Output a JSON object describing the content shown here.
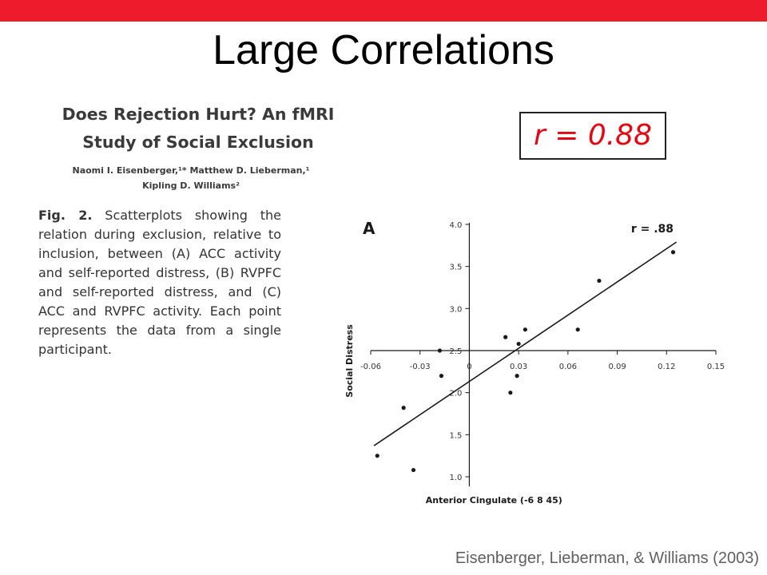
{
  "slide": {
    "title": "Large Correlations",
    "accent_color": "#ee1b2d",
    "r_label": "r = 0.88",
    "r_color": "#e30613",
    "citation": "Eisenberger, Lieberman, & Williams (2003)"
  },
  "paper": {
    "title_line1": "Does Rejection Hurt? An fMRI",
    "title_line2": "Study of Social Exclusion",
    "authors_line1": "Naomi I. Eisenberger,¹* Matthew D. Lieberman,¹",
    "authors_line2": "Kipling D. Williams²",
    "caption_label": "Fig. 2.",
    "caption_text": " Scatterplots showing the relation during exclusion, relative to inclusion, between (A) ACC activity and self-reported distress, (B) RVPFC and self-reported distress, and (C) ACC and RVPFC activity. Each point represents the data from a single participant."
  },
  "chart_data": {
    "type": "scatter",
    "panel_label": "A",
    "annotation": "r = .88",
    "xlabel": "Anterior Cingulate (-6 8 45)",
    "ylabel": "Social Distress",
    "xlim": [
      -0.06,
      0.15
    ],
    "ylim": [
      1.0,
      4.0
    ],
    "x_ticks": [
      -0.06,
      -0.03,
      0,
      0.03,
      0.06,
      0.09,
      0.12,
      0.15
    ],
    "x_tick_labels": [
      "-0.06",
      "-0.03",
      "0",
      "0.03",
      "0.06",
      "0.09",
      "0.12",
      "0.15"
    ],
    "y_ticks": [
      1.0,
      1.5,
      2.0,
      2.5,
      3.0,
      3.5,
      4.0
    ],
    "y_tick_labels": [
      "1.0",
      "1.5",
      "2.0",
      "2.5",
      "3.0",
      "3.5",
      "4.0"
    ],
    "x_axis_crosses_y_at": 2.5,
    "grid": false,
    "points": [
      {
        "x": -0.056,
        "y": 1.25
      },
      {
        "x": -0.04,
        "y": 1.82
      },
      {
        "x": -0.034,
        "y": 1.08
      },
      {
        "x": -0.018,
        "y": 2.5
      },
      {
        "x": -0.017,
        "y": 2.2
      },
      {
        "x": 0.022,
        "y": 2.66
      },
      {
        "x": 0.025,
        "y": 2.0
      },
      {
        "x": 0.029,
        "y": 2.2
      },
      {
        "x": 0.03,
        "y": 2.58
      },
      {
        "x": 0.034,
        "y": 2.75
      },
      {
        "x": 0.066,
        "y": 2.75
      },
      {
        "x": 0.079,
        "y": 3.33
      },
      {
        "x": 0.124,
        "y": 3.67
      }
    ],
    "fit_line": {
      "x1": -0.058,
      "y1": 1.37,
      "x2": 0.126,
      "y2": 3.79
    }
  }
}
